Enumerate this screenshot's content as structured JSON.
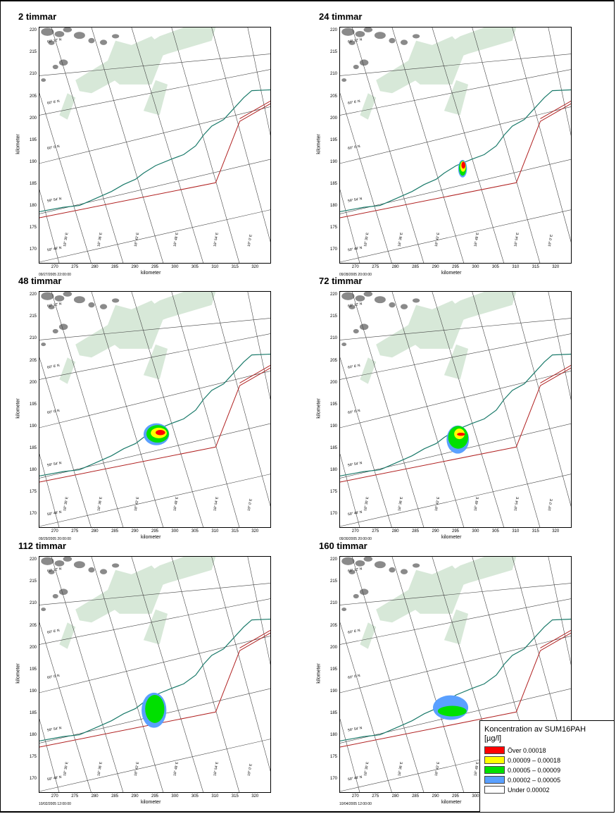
{
  "panels": [
    {
      "title": "2 timmar",
      "timestamp": "09/27/2005 22:00:00",
      "plume": 0
    },
    {
      "title": "24 timmar",
      "timestamp": "09/28/2005 20:00:00",
      "plume": 1
    },
    {
      "title": "48 timmar",
      "timestamp": "09/29/2005 20:00:00",
      "plume": 2
    },
    {
      "title": "72 timmar",
      "timestamp": "09/30/2005 20:00:00",
      "plume": 3
    },
    {
      "title": "112 timmar",
      "timestamp": "10/02/2005 12:00:00",
      "plume": 4
    },
    {
      "title": "160 timmar",
      "timestamp": "10/04/2005 12:00:00",
      "plume": 5
    }
  ],
  "axes": {
    "xlabel": "kilometer",
    "ylabel": "kilometer",
    "xlim": [
      266,
      324
    ],
    "ylim": [
      167,
      221
    ],
    "xticks": [
      270,
      275,
      280,
      285,
      290,
      295,
      300,
      305,
      310,
      315,
      320
    ],
    "yticks": [
      170,
      175,
      180,
      185,
      190,
      195,
      200,
      205,
      210,
      215,
      220
    ]
  },
  "graticule": {
    "lat_labels": [
      "60° 12' N",
      "60° 6' N",
      "60° 0' N",
      "59° 54' N",
      "59° 48' N"
    ],
    "lon_labels": [
      "18° 30' E",
      "18° 36' E",
      "18° 42' E",
      "18° 48' E",
      "18° 54' E",
      "19° 0' E"
    ]
  },
  "legend": {
    "title": "Koncentration av SUM16PAH",
    "unit": "[µg/l]",
    "items": [
      {
        "label": "Över 0.00018",
        "color": "#ff0000"
      },
      {
        "label": "0.00009 – 0.00018",
        "color": "#ffff00"
      },
      {
        "label": "0.00005 – 0.00009",
        "color": "#00e000"
      },
      {
        "label": "0.00002 – 0.00005",
        "color": "#5aa0ff"
      },
      {
        "label": "Under 0.00002",
        "color": "#ffffff"
      }
    ]
  },
  "colors": {
    "coast": "#1a7a6a",
    "route": "#b02020",
    "land_green": "#d7e8d8",
    "land_gray": "#8a8a8a"
  }
}
